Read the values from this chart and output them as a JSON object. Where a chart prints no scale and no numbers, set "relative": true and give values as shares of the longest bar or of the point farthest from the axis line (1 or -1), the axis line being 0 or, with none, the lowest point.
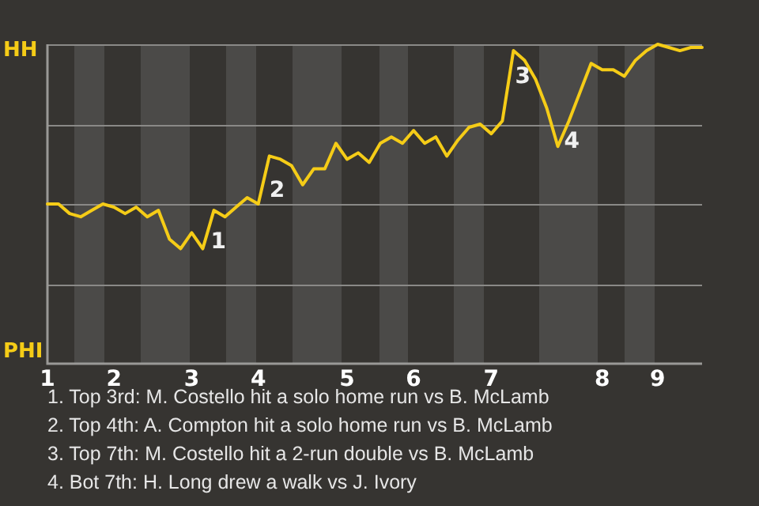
{
  "chart_data": {
    "type": "line",
    "relative": true,
    "categories": [
      "1",
      null,
      null,
      null,
      null,
      null,
      "2",
      null,
      null,
      null,
      null,
      null,
      null,
      "3",
      null,
      null,
      null,
      null,
      null,
      "4",
      null,
      null,
      null,
      null,
      null,
      null,
      null,
      "5",
      null,
      null,
      null,
      null,
      null,
      "6",
      null,
      null,
      null,
      null,
      null,
      null,
      "7",
      null,
      null,
      null,
      null,
      null,
      null,
      null,
      null,
      null,
      "8",
      null,
      null,
      null,
      null,
      "9",
      null,
      null,
      null,
      null
    ],
    "series": [
      {
        "color": "#f5cc17",
        "values": [
          0.5,
          0.5,
          0.47,
          0.46,
          0.48,
          0.5,
          0.49,
          0.47,
          0.49,
          0.46,
          0.48,
          0.39,
          0.36,
          0.41,
          0.36,
          0.48,
          0.46,
          0.49,
          0.52,
          0.5,
          0.65,
          0.64,
          0.62,
          0.56,
          0.61,
          0.61,
          0.69,
          0.64,
          0.66,
          0.63,
          0.69,
          0.71,
          0.69,
          0.73,
          0.69,
          0.71,
          0.65,
          0.7,
          0.74,
          0.75,
          0.72,
          0.76,
          0.98,
          0.95,
          0.89,
          0.8,
          0.68,
          0.76,
          0.85,
          0.94,
          0.92,
          0.92,
          0.9,
          0.95,
          0.98,
          1,
          0.99,
          0.98,
          0.99,
          0.99
        ]
      }
    ],
    "grid": "y",
    "legend": false,
    "marker": "none",
    "line_style": "solid",
    "annotations": [
      "HH",
      "PHI",
      "1",
      "2",
      "3",
      "4",
      "1. Top 3rd: M. Costello hit a solo home run vs B. McLamb",
      "2. Top 4th: A. Compton hit a solo home run vs B. McLamb",
      "3. Top 7th: M. Costello hit a 2-run double vs B. McLamb",
      "4. Bot 7th: H. Long drew a walk vs J. Ivory"
    ]
  }
}
